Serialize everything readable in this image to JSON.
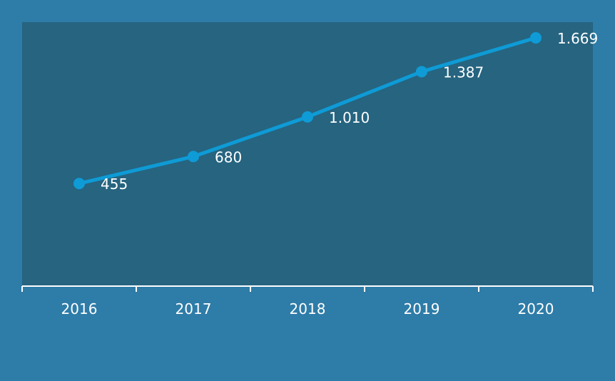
{
  "chart_data": {
    "type": "line",
    "title": "",
    "xlabel": "",
    "ylabel": "",
    "categories": [
      "2016",
      "2017",
      "2018",
      "2019",
      "2020"
    ],
    "series": [
      {
        "values": [
          455,
          680,
          1010,
          1387,
          1669
        ],
        "labels": [
          "455",
          "680",
          "1.010",
          "1.387",
          "1.669"
        ]
      }
    ],
    "ylim": [
      -400,
      1800
    ],
    "grid": false,
    "legend": "none",
    "colors": {
      "page_background": "#2e7ca8",
      "plot_background": "#266480",
      "line": "#0e9bd6",
      "axis": "#ffffff",
      "text": "#ffffff"
    }
  }
}
